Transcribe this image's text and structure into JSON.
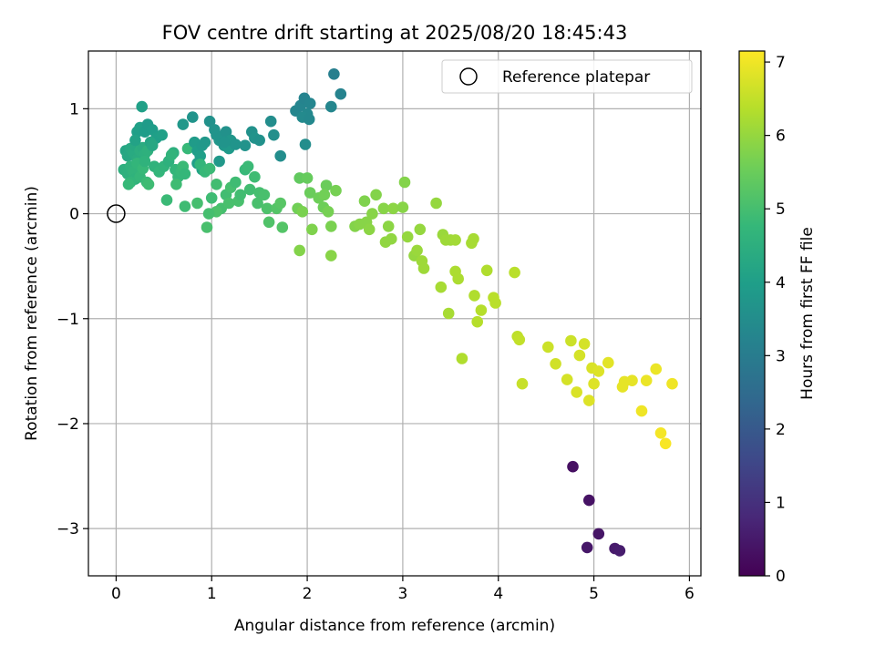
{
  "chart_data": {
    "type": "scatter",
    "title": "FOV centre drift starting at 2025/08/20 18:45:43",
    "xlabel": "Angular distance from reference (arcmin)",
    "ylabel": "Rotation from reference (arcmin)",
    "xlim": [
      -0.29,
      6.12
    ],
    "ylim": [
      -3.45,
      1.55
    ],
    "xticks": [
      0,
      1,
      2,
      3,
      4,
      5,
      6
    ],
    "xtick_labels": [
      "0",
      "1",
      "2",
      "3",
      "4",
      "5",
      "6"
    ],
    "yticks": [
      1,
      0,
      -1,
      -2,
      -3
    ],
    "ytick_labels": [
      "1",
      "0",
      "−1",
      "−2",
      "−3"
    ],
    "grid": true,
    "colormap": "viridis",
    "colormap_stops": [
      "#440154",
      "#482878",
      "#3e4989",
      "#31688e",
      "#26828e",
      "#1f9e89",
      "#35b779",
      "#6ece58",
      "#b5de2b",
      "#fde725"
    ],
    "colorbar": {
      "label": "Hours from first FF file",
      "range": [
        0,
        7.15
      ],
      "ticks": [
        0,
        1,
        2,
        3,
        4,
        5,
        6,
        7
      ],
      "tick_labels": [
        "0",
        "1",
        "2",
        "3",
        "4",
        "5",
        "6",
        "7"
      ]
    },
    "legend": {
      "entry": "Reference platepar",
      "placement": "top-right"
    },
    "reference_point": [
      0,
      0
    ],
    "points": [
      [
        4.78,
        -2.41,
        0.3
      ],
      [
        4.95,
        -2.73,
        0.35
      ],
      [
        5.05,
        -3.05,
        0.4
      ],
      [
        4.93,
        -3.18,
        0.45
      ],
      [
        5.22,
        -3.19,
        0.5
      ],
      [
        5.27,
        -3.21,
        0.55
      ],
      [
        0.1,
        0.6,
        4.2
      ],
      [
        0.12,
        0.55,
        4.25
      ],
      [
        0.15,
        0.62,
        4.3
      ],
      [
        0.18,
        0.58,
        4.35
      ],
      [
        0.2,
        0.65,
        4.3
      ],
      [
        0.22,
        0.52,
        4.4
      ],
      [
        0.25,
        0.6,
        4.45
      ],
      [
        0.28,
        0.63,
        4.4
      ],
      [
        0.3,
        0.57,
        4.5
      ],
      [
        0.33,
        0.6,
        4.55
      ],
      [
        0.08,
        0.42,
        4.5
      ],
      [
        0.12,
        0.38,
        4.55
      ],
      [
        0.15,
        0.45,
        4.6
      ],
      [
        0.18,
        0.4,
        4.65
      ],
      [
        0.2,
        0.33,
        4.6
      ],
      [
        0.22,
        0.48,
        4.7
      ],
      [
        0.25,
        0.35,
        4.75
      ],
      [
        0.28,
        0.43,
        4.8
      ],
      [
        0.15,
        0.3,
        4.7
      ],
      [
        0.13,
        0.28,
        4.8
      ],
      [
        0.32,
        0.3,
        4.85
      ],
      [
        0.34,
        0.28,
        4.9
      ],
      [
        0.3,
        0.5,
        4.6
      ],
      [
        0.22,
        0.78,
        4.0
      ],
      [
        0.25,
        0.82,
        4.05
      ],
      [
        0.3,
        0.78,
        3.95
      ],
      [
        0.33,
        0.85,
        3.9
      ],
      [
        0.38,
        0.8,
        3.95
      ],
      [
        0.42,
        0.72,
        4.0
      ],
      [
        0.48,
        0.75,
        4.05
      ],
      [
        0.27,
        1.02,
        4.05
      ],
      [
        0.2,
        0.7,
        4.1
      ],
      [
        0.36,
        0.68,
        4.2
      ],
      [
        0.38,
        0.65,
        4.25
      ],
      [
        0.4,
        0.45,
        4.6
      ],
      [
        0.45,
        0.4,
        4.7
      ],
      [
        0.5,
        0.45,
        4.65
      ],
      [
        0.55,
        0.5,
        4.55
      ],
      [
        0.6,
        0.58,
        4.5
      ],
      [
        0.62,
        0.42,
        4.7
      ],
      [
        0.65,
        0.35,
        4.75
      ],
      [
        0.68,
        0.4,
        4.8
      ],
      [
        0.7,
        0.45,
        4.85
      ],
      [
        0.72,
        0.38,
        4.75
      ],
      [
        0.63,
        0.28,
        4.9
      ],
      [
        0.53,
        0.13,
        4.85
      ],
      [
        0.72,
        0.07,
        4.9
      ],
      [
        0.75,
        0.62,
        4.8
      ],
      [
        0.58,
        0.56,
        4.65
      ],
      [
        0.7,
        0.85,
        3.8
      ],
      [
        0.8,
        0.92,
        3.7
      ],
      [
        0.82,
        0.68,
        3.9
      ],
      [
        0.85,
        0.6,
        3.95
      ],
      [
        0.88,
        0.55,
        4.0
      ],
      [
        0.9,
        0.65,
        3.85
      ],
      [
        0.93,
        0.68,
        3.8
      ],
      [
        0.98,
        0.88,
        3.6
      ],
      [
        1.03,
        0.8,
        3.65
      ],
      [
        1.05,
        0.75,
        3.7
      ],
      [
        1.08,
        0.7,
        3.75
      ],
      [
        1.1,
        0.72,
        3.7
      ],
      [
        1.13,
        0.65,
        3.8
      ],
      [
        1.15,
        0.78,
        3.6
      ],
      [
        1.18,
        0.62,
        3.85
      ],
      [
        1.2,
        0.7,
        3.75
      ],
      [
        1.25,
        0.66,
        3.7
      ],
      [
        1.35,
        0.65,
        3.65
      ],
      [
        1.42,
        0.78,
        3.6
      ],
      [
        1.45,
        0.72,
        3.65
      ],
      [
        1.5,
        0.7,
        3.6
      ],
      [
        1.62,
        0.88,
        3.5
      ],
      [
        1.65,
        0.75,
        3.55
      ],
      [
        1.72,
        0.55,
        3.5
      ],
      [
        1.08,
        0.5,
        3.8
      ],
      [
        1.13,
        0.68,
        3.7
      ],
      [
        0.9,
        0.42,
        4.1
      ],
      [
        0.85,
        0.48,
        4.0
      ],
      [
        0.88,
        0.47,
        4.7
      ],
      [
        0.93,
        0.4,
        4.8
      ],
      [
        0.98,
        0.43,
        4.85
      ],
      [
        1.0,
        0.15,
        4.9
      ],
      [
        1.05,
        0.28,
        4.95
      ],
      [
        1.1,
        0.05,
        5.0
      ],
      [
        1.15,
        0.18,
        4.95
      ],
      [
        1.2,
        0.25,
        5.0
      ],
      [
        1.25,
        0.3,
        4.9
      ],
      [
        1.28,
        0.12,
        5.05
      ],
      [
        1.3,
        0.18,
        4.95
      ],
      [
        1.35,
        0.42,
        4.8
      ],
      [
        1.38,
        0.45,
        4.85
      ],
      [
        1.4,
        0.23,
        4.95
      ],
      [
        1.45,
        0.35,
        4.9
      ],
      [
        1.48,
        0.1,
        5.05
      ],
      [
        1.5,
        0.2,
        5.0
      ],
      [
        1.55,
        0.18,
        5.05
      ],
      [
        1.58,
        0.05,
        5.1
      ],
      [
        1.6,
        -0.08,
        5.15
      ],
      [
        1.68,
        0.05,
        5.2
      ],
      [
        1.72,
        0.1,
        5.25
      ],
      [
        1.74,
        -0.13,
        5.2
      ],
      [
        0.85,
        0.1,
        5.0
      ],
      [
        0.95,
        -0.13,
        5.05
      ],
      [
        1.05,
        0.02,
        5.1
      ],
      [
        0.97,
        0.0,
        5.0
      ],
      [
        1.18,
        0.1,
        5.05
      ],
      [
        1.88,
        0.98,
        3.3
      ],
      [
        1.93,
        1.03,
        3.25
      ],
      [
        1.97,
        1.1,
        3.2
      ],
      [
        2.0,
        0.95,
        3.35
      ],
      [
        2.03,
        1.05,
        3.25
      ],
      [
        1.95,
        0.92,
        3.4
      ],
      [
        2.02,
        0.9,
        3.35
      ],
      [
        1.98,
        0.66,
        3.5
      ],
      [
        2.25,
        1.02,
        3.3
      ],
      [
        2.28,
        1.33,
        3.1
      ],
      [
        2.35,
        1.14,
        3.2
      ],
      [
        1.92,
        0.34,
        5.4
      ],
      [
        2.0,
        0.34,
        5.45
      ],
      [
        2.03,
        0.2,
        5.5
      ],
      [
        2.12,
        0.15,
        5.55
      ],
      [
        2.17,
        0.06,
        5.55
      ],
      [
        2.2,
        0.27,
        5.5
      ],
      [
        2.18,
        0.18,
        5.6
      ],
      [
        2.22,
        0.02,
        5.65
      ],
      [
        2.25,
        -0.12,
        5.7
      ],
      [
        2.3,
        0.22,
        5.65
      ],
      [
        1.9,
        0.05,
        5.6
      ],
      [
        1.95,
        0.02,
        5.7
      ],
      [
        1.92,
        -0.35,
        5.8
      ],
      [
        2.05,
        -0.15,
        5.75
      ],
      [
        2.25,
        -0.4,
        5.85
      ],
      [
        2.5,
        -0.12,
        5.8
      ],
      [
        2.55,
        -0.1,
        5.85
      ],
      [
        2.6,
        0.12,
        5.75
      ],
      [
        2.62,
        -0.08,
        5.85
      ],
      [
        2.65,
        -0.15,
        5.9
      ],
      [
        2.68,
        0.0,
        5.85
      ],
      [
        2.72,
        0.18,
        5.8
      ],
      [
        2.8,
        0.05,
        5.85
      ],
      [
        2.82,
        -0.27,
        5.95
      ],
      [
        2.85,
        -0.12,
        5.9
      ],
      [
        2.88,
        -0.24,
        5.95
      ],
      [
        2.9,
        0.05,
        5.9
      ],
      [
        3.0,
        0.06,
        5.85
      ],
      [
        3.02,
        0.3,
        5.8
      ],
      [
        3.05,
        -0.22,
        6.0
      ],
      [
        3.12,
        -0.4,
        6.0
      ],
      [
        3.15,
        -0.35,
        6.05
      ],
      [
        3.18,
        -0.15,
        6.0
      ],
      [
        3.2,
        -0.45,
        6.1
      ],
      [
        3.22,
        -0.52,
        6.1
      ],
      [
        3.35,
        0.1,
        6.0
      ],
      [
        3.42,
        -0.2,
        6.05
      ],
      [
        3.45,
        -0.25,
        6.1
      ],
      [
        3.5,
        -0.25,
        6.1
      ],
      [
        3.55,
        -0.25,
        6.15
      ],
      [
        3.4,
        -0.7,
        6.2
      ],
      [
        3.48,
        -0.95,
        6.2
      ],
      [
        3.55,
        -0.55,
        6.25
      ],
      [
        3.58,
        -0.62,
        6.25
      ],
      [
        3.62,
        -1.38,
        6.3
      ],
      [
        3.72,
        -0.28,
        6.2
      ],
      [
        3.74,
        -0.24,
        6.2
      ],
      [
        3.75,
        -0.78,
        6.3
      ],
      [
        3.78,
        -1.03,
        6.35
      ],
      [
        3.82,
        -0.92,
        6.35
      ],
      [
        3.88,
        -0.54,
        6.3
      ],
      [
        3.95,
        -0.8,
        6.4
      ],
      [
        3.97,
        -0.85,
        6.4
      ],
      [
        4.17,
        -0.56,
        6.4
      ],
      [
        4.2,
        -1.17,
        6.45
      ],
      [
        4.22,
        -1.2,
        6.5
      ],
      [
        4.25,
        -1.62,
        6.55
      ],
      [
        4.52,
        -1.27,
        6.6
      ],
      [
        4.6,
        -1.43,
        6.65
      ],
      [
        4.72,
        -1.58,
        6.7
      ],
      [
        4.76,
        -1.21,
        6.6
      ],
      [
        4.82,
        -1.7,
        6.75
      ],
      [
        4.85,
        -1.35,
        6.7
      ],
      [
        4.9,
        -1.24,
        6.7
      ],
      [
        4.95,
        -1.78,
        6.8
      ],
      [
        4.98,
        -1.47,
        6.75
      ],
      [
        5.0,
        -1.62,
        6.8
      ],
      [
        5.05,
        -1.5,
        6.8
      ],
      [
        5.15,
        -1.42,
        6.85
      ],
      [
        5.3,
        -1.65,
        6.9
      ],
      [
        5.32,
        -1.6,
        6.9
      ],
      [
        5.4,
        -1.59,
        6.9
      ],
      [
        5.5,
        -1.88,
        7.0
      ],
      [
        5.55,
        -1.59,
        6.95
      ],
      [
        5.65,
        -1.48,
        6.95
      ],
      [
        5.7,
        -2.09,
        7.05
      ],
      [
        5.75,
        -2.19,
        7.1
      ],
      [
        5.82,
        -1.62,
        7.0
      ]
    ]
  }
}
